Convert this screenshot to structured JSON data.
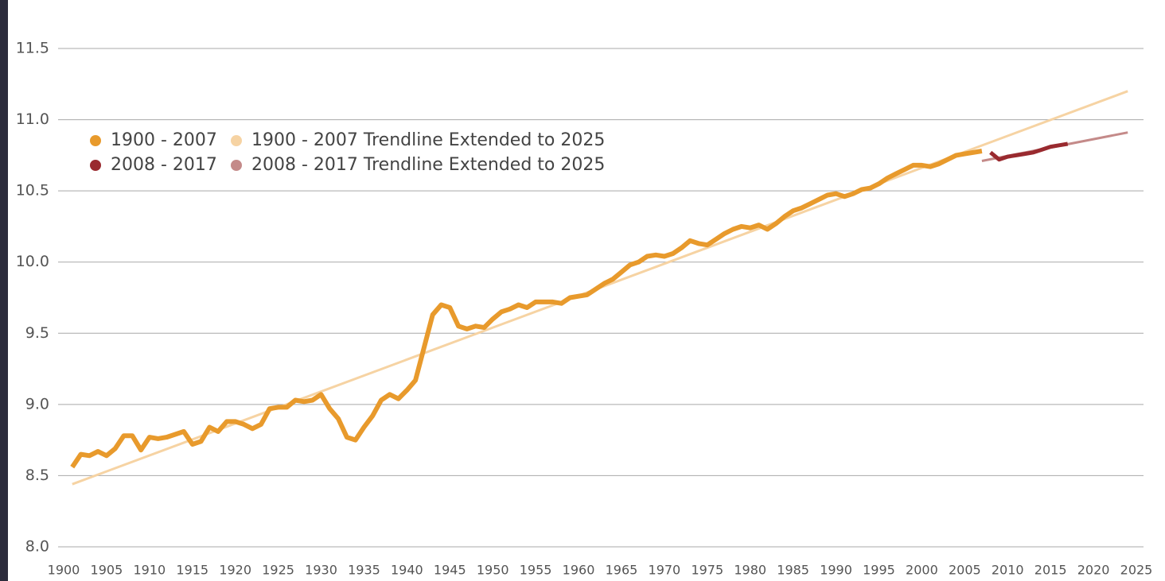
{
  "chart_data": {
    "type": "line",
    "xlim": [
      1900,
      2025
    ],
    "xticks": [
      1900,
      1905,
      1910,
      1915,
      1920,
      1925,
      1930,
      1935,
      1940,
      1945,
      1950,
      1955,
      1960,
      1965,
      1970,
      1975,
      1980,
      1985,
      1990,
      1995,
      2000,
      2005,
      2010,
      2015,
      2020,
      2025
    ],
    "ylim": [
      8.0,
      11.5
    ],
    "yticks": [
      {
        "value": 8.0,
        "label": "8.0"
      },
      8.5,
      {
        "value": 9.0,
        "label": "9.0"
      },
      9.5,
      {
        "value": 10.0,
        "label": "10.0"
      },
      10.5,
      {
        "value": 11.0,
        "label": "11.0"
      },
      11.5
    ],
    "grid": true,
    "legend": "upper left",
    "series": [
      {
        "name": "1900 - 2007",
        "color": "#e89a2c",
        "width": 6,
        "x": [
          1901,
          1902,
          1903,
          1904,
          1905,
          1906,
          1907,
          1908,
          1909,
          1910,
          1911,
          1912,
          1913,
          1914,
          1915,
          1916,
          1917,
          1918,
          1919,
          1920,
          1921,
          1922,
          1923,
          1924,
          1925,
          1926,
          1927,
          1928,
          1929,
          1930,
          1931,
          1932,
          1933,
          1934,
          1935,
          1936,
          1937,
          1938,
          1939,
          1940,
          1941,
          1942,
          1943,
          1944,
          1945,
          1946,
          1947,
          1948,
          1949,
          1950,
          1951,
          1952,
          1953,
          1954,
          1955,
          1956,
          1957,
          1958,
          1959,
          1960,
          1961,
          1962,
          1963,
          1964,
          1965,
          1966,
          1967,
          1968,
          1969,
          1970,
          1971,
          1972,
          1973,
          1974,
          1975,
          1976,
          1977,
          1978,
          1979,
          1980,
          1981,
          1982,
          1983,
          1984,
          1985,
          1986,
          1987,
          1988,
          1989,
          1990,
          1991,
          1992,
          1993,
          1994,
          1995,
          1996,
          1997,
          1998,
          1999,
          2000,
          2001,
          2002,
          2003,
          2004,
          2005,
          2006,
          2007
        ],
        "values": [
          8.56,
          8.65,
          8.64,
          8.67,
          8.64,
          8.69,
          8.78,
          8.78,
          8.68,
          8.77,
          8.76,
          8.77,
          8.79,
          8.81,
          8.72,
          8.74,
          8.84,
          8.81,
          8.88,
          8.88,
          8.86,
          8.83,
          8.86,
          8.97,
          8.98,
          8.98,
          9.03,
          9.02,
          9.03,
          9.07,
          8.97,
          8.9,
          8.77,
          8.75,
          8.84,
          8.92,
          9.03,
          9.07,
          9.04,
          9.1,
          9.17,
          9.4,
          9.63,
          9.7,
          9.68,
          9.55,
          9.53,
          9.55,
          9.54,
          9.6,
          9.65,
          9.67,
          9.7,
          9.68,
          9.72,
          9.72,
          9.72,
          9.71,
          9.75,
          9.76,
          9.77,
          9.81,
          9.85,
          9.88,
          9.93,
          9.98,
          10.0,
          10.04,
          10.05,
          10.04,
          10.06,
          10.1,
          10.15,
          10.13,
          10.12,
          10.16,
          10.2,
          10.23,
          10.25,
          10.24,
          10.26,
          10.23,
          10.27,
          10.32,
          10.36,
          10.38,
          10.41,
          10.44,
          10.47,
          10.48,
          10.46,
          10.48,
          10.51,
          10.52,
          10.55,
          10.59,
          10.62,
          10.65,
          10.68,
          10.68,
          10.67,
          10.69,
          10.72,
          10.75,
          10.76,
          10.77,
          10.78
        ]
      },
      {
        "name": "1900 - 2007 Trendline Extended to 2025",
        "color": "#f6d3a3",
        "width": 3,
        "x": [
          1901,
          2024
        ],
        "values": [
          8.44,
          11.2
        ]
      },
      {
        "name": "2008 - 2017",
        "color": "#992a2f",
        "width": 5,
        "x": [
          2008,
          2009,
          2010,
          2011,
          2012,
          2013,
          2014,
          2015,
          2016,
          2017
        ],
        "values": [
          10.77,
          10.72,
          10.74,
          10.75,
          10.76,
          10.77,
          10.79,
          10.81,
          10.82,
          10.83
        ]
      },
      {
        "name": "2008 - 2017 Trendline Extended to 2025",
        "color": "#c48a89",
        "width": 3,
        "x": [
          2007,
          2024
        ],
        "values": [
          10.71,
          10.91
        ]
      }
    ]
  }
}
